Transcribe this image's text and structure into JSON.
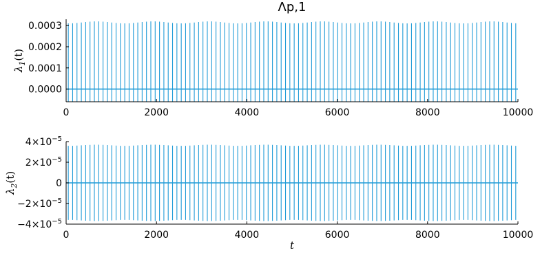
{
  "chart_data": [
    {
      "type": "line",
      "title": "Λp,1",
      "ylabel": "λ1(t)",
      "ylabel_main": "λ",
      "ylabel_sub": "1",
      "ylabel_arg": "(t)",
      "xlabel": "",
      "xlim": [
        0,
        10000
      ],
      "ylim": [
        -6e-05,
        0.00033
      ],
      "xticks": [
        0,
        2000,
        4000,
        6000,
        8000,
        10000
      ],
      "xtick_labels": [
        "0",
        "2000",
        "4000",
        "6000",
        "8000",
        "10000"
      ],
      "yticks": [
        0,
        0.0001,
        0.0002,
        0.0003
      ],
      "ytick_labels": [
        "0.0000",
        "0.0001",
        "0.0002",
        "0.0003"
      ],
      "grid": false,
      "legend": "none",
      "series": [
        {
          "color": "#1f9bd7",
          "oscillation": {
            "spike_count": 104,
            "period": 96.15,
            "upper": 0.00032,
            "lower": -6e-05,
            "baseline": 0
          }
        }
      ]
    },
    {
      "type": "line",
      "title": "",
      "ylabel": "λ2(t)",
      "ylabel_main": "λ",
      "ylabel_sub": "2",
      "ylabel_arg": "(t)",
      "xlabel": "t",
      "xlim": [
        0,
        10000
      ],
      "ylim": [
        -4e-05,
        4e-05
      ],
      "xticks": [
        0,
        2000,
        4000,
        6000,
        8000,
        10000
      ],
      "xtick_labels": [
        "0",
        "2000",
        "4000",
        "6000",
        "8000",
        "10000"
      ],
      "yticks": [
        -4e-05,
        -2e-05,
        0,
        2e-05,
        4e-05
      ],
      "ytick_labels": [
        {
          "text": "−4×10",
          "exp": "−5"
        },
        {
          "text": "−2×10",
          "exp": "−5"
        },
        {
          "text": "0",
          "exp": ""
        },
        {
          "text": "2×10",
          "exp": "−5"
        },
        {
          "text": "4×10",
          "exp": "−5"
        }
      ],
      "grid": false,
      "legend": "none",
      "series": [
        {
          "color": "#1f9bd7",
          "oscillation": {
            "spike_count": 104,
            "period": 96.15,
            "upper": 3.7e-05,
            "lower": -3.7e-05,
            "baseline": 0
          }
        }
      ]
    }
  ]
}
